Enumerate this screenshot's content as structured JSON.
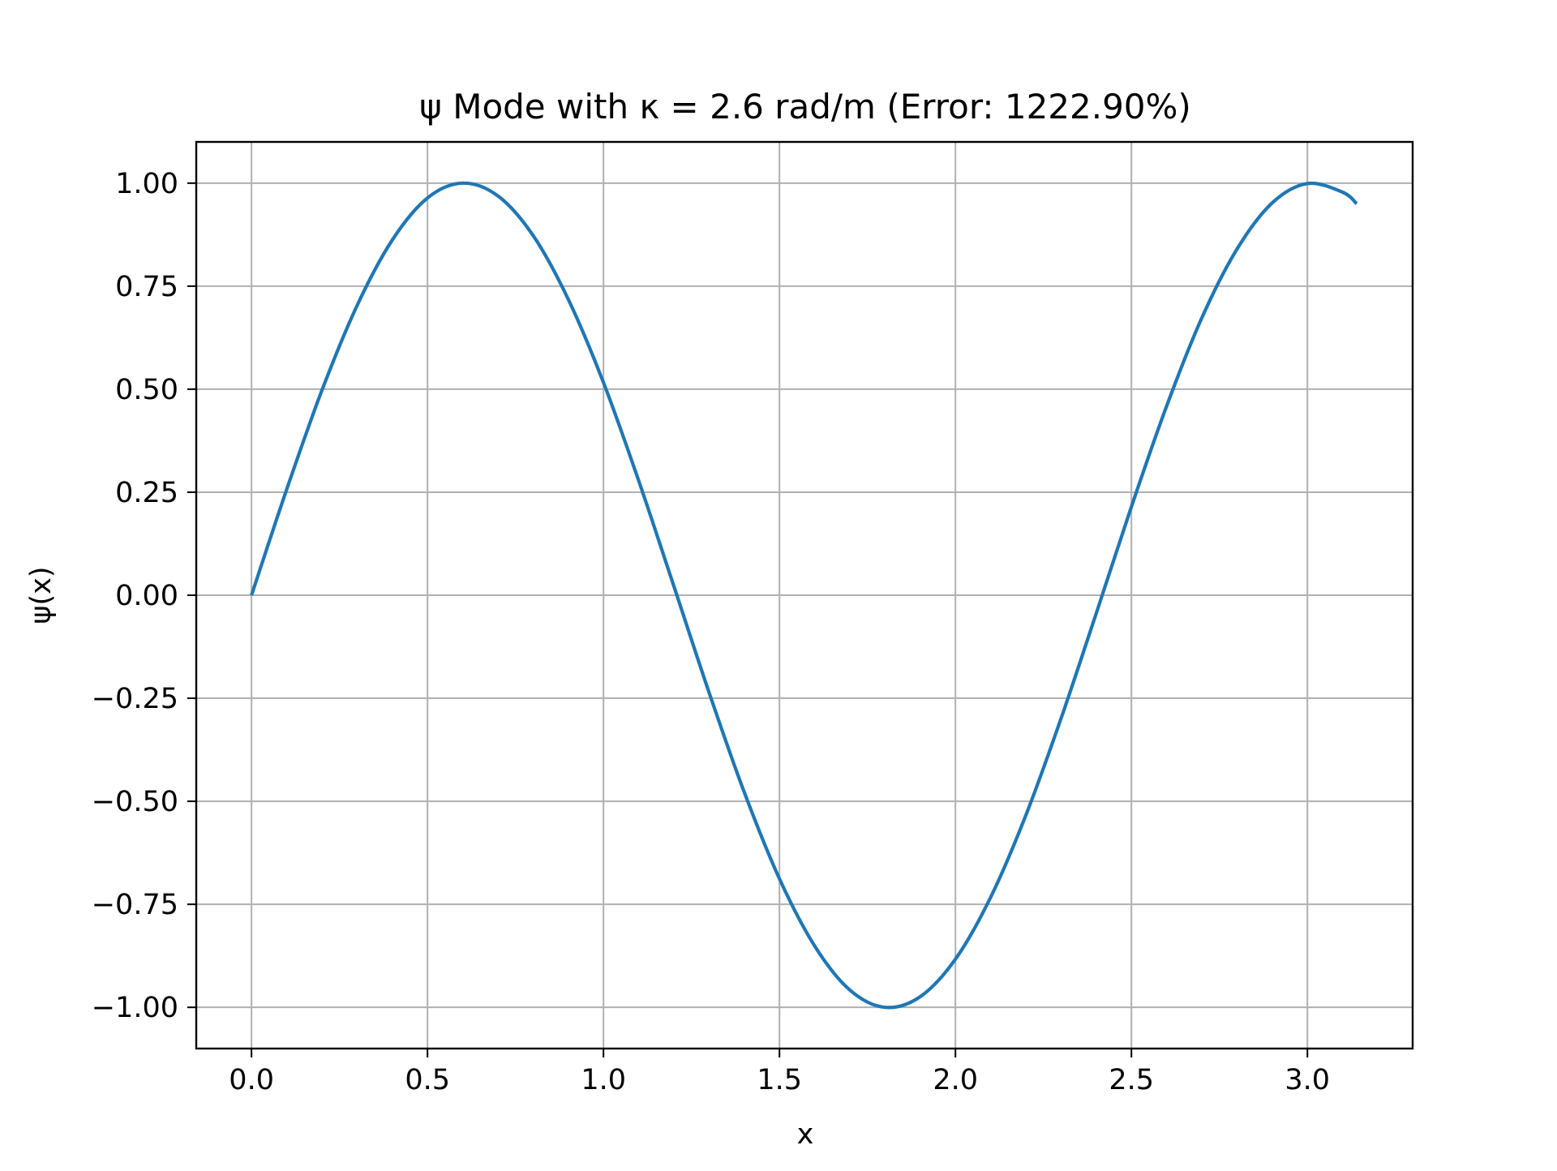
{
  "chart_data": {
    "type": "line",
    "title": "ψ Mode with κ = 2.6 rad/m (Error: 1222.90%)",
    "xlabel": "x",
    "ylabel": "ψ(x)",
    "xlim": [
      -0.157,
      3.299
    ],
    "ylim": [
      -1.1,
      1.1
    ],
    "xticks": [
      0.0,
      0.5,
      1.0,
      1.5,
      2.0,
      2.5,
      3.0
    ],
    "xtick_labels": [
      "0.0",
      "0.5",
      "1.0",
      "1.5",
      "2.0",
      "2.5",
      "3.0"
    ],
    "yticks": [
      1.0,
      0.75,
      0.5,
      0.25,
      0.0,
      -0.25,
      -0.5,
      -0.75,
      -1.0
    ],
    "ytick_labels": [
      "1.00",
      "0.75",
      "0.50",
      "0.25",
      "0.00",
      "−0.25",
      "−0.50",
      "−0.75",
      "−1.00"
    ],
    "grid": true,
    "series": [
      {
        "color": "#1f77b4",
        "x": [
          0.0,
          0.1,
          0.2,
          0.3,
          0.4,
          0.5,
          0.6,
          0.7,
          0.8,
          0.9,
          1.0,
          1.1,
          1.2,
          1.3,
          1.4,
          1.5,
          1.6,
          1.7,
          1.8,
          1.9,
          2.0,
          2.1,
          2.2,
          2.3,
          2.4,
          2.5,
          2.6,
          2.7,
          2.8,
          2.9,
          3.0,
          3.1,
          3.14
        ],
        "y": [
          0.0,
          0.257,
          0.497,
          0.703,
          0.862,
          0.964,
          1.0,
          0.969,
          0.873,
          0.718,
          0.516,
          0.278,
          0.022,
          -0.236,
          -0.478,
          -0.688,
          -0.851,
          -0.958,
          -1.0,
          -0.974,
          -0.883,
          -0.733,
          -0.534,
          -0.299,
          -0.044,
          0.215,
          0.459,
          0.673,
          0.84,
          0.952,
          0.999,
          0.978,
          0.95
        ]
      }
    ]
  }
}
